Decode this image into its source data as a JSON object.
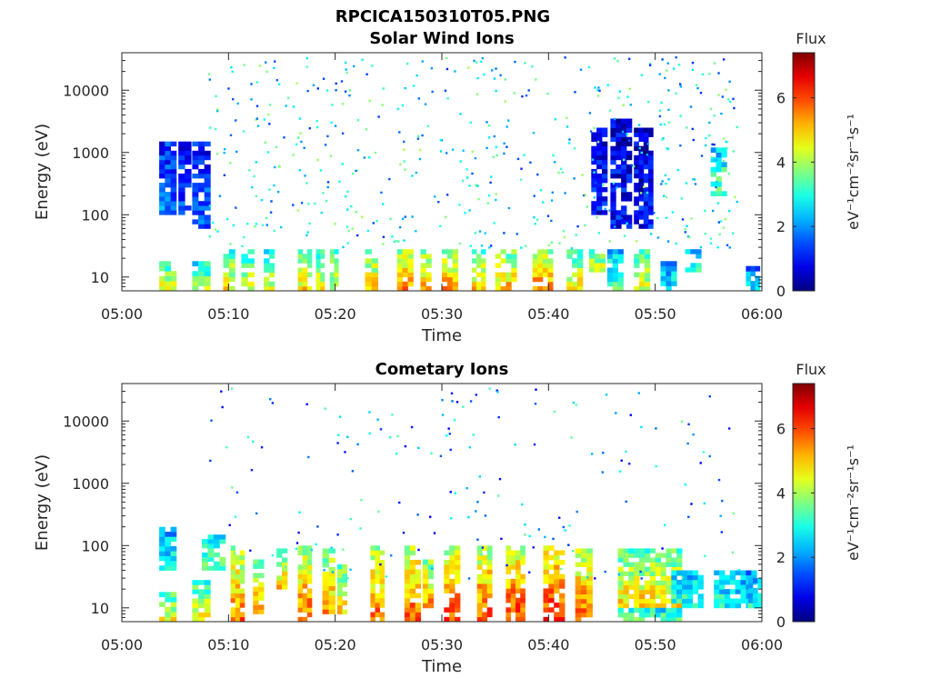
{
  "figure_title": "RPCICA150310T05.PNG",
  "chart_data": [
    {
      "type": "heatmap",
      "title": "Solar Wind Ions",
      "xlabel": "Time",
      "ylabel": "Energy (eV)",
      "x_ticks": [
        "05:00",
        "05:10",
        "05:20",
        "05:30",
        "05:40",
        "05:50",
        "06:00"
      ],
      "x_range_minutes": [
        0,
        60
      ],
      "y_scale": "log",
      "y_range": [
        6,
        40000
      ],
      "y_ticks": [
        "10",
        "100",
        "1000",
        "10000"
      ],
      "colorbar": {
        "label": "Flux",
        "unit": "eV⁻¹cm⁻²sr⁻¹s⁻¹",
        "range": [
          0,
          7.4
        ],
        "ticks": [
          "0",
          "2",
          "4",
          "6"
        ],
        "colormap": "jet"
      },
      "bursts": [
        {
          "t": 3.5,
          "w": 1.6,
          "emin": 6,
          "emax": 18,
          "value": 4.4
        },
        {
          "t": 3.5,
          "w": 1.6,
          "emin": 100,
          "emax": 1500,
          "value": 1.8
        },
        {
          "t": 5.3,
          "w": 1.2,
          "emin": 100,
          "emax": 1500,
          "value": 1.4
        },
        {
          "t": 6.6,
          "w": 1.7,
          "emin": 6,
          "emax": 18,
          "value": 4.0
        },
        {
          "t": 6.6,
          "w": 1.7,
          "emin": 60,
          "emax": 1500,
          "value": 1.6
        },
        {
          "t": 9.5,
          "w": 1.1,
          "emin": 6,
          "emax": 28,
          "value": 4.6
        },
        {
          "t": 11.2,
          "w": 1.2,
          "emin": 6,
          "emax": 28,
          "value": 4.4
        },
        {
          "t": 13.3,
          "w": 1.0,
          "emin": 6,
          "emax": 28,
          "value": 4.2
        },
        {
          "t": 16.5,
          "w": 1.3,
          "emin": 6,
          "emax": 28,
          "value": 4.8
        },
        {
          "t": 18.2,
          "w": 0.8,
          "emin": 6,
          "emax": 28,
          "value": 4.6
        },
        {
          "t": 19.5,
          "w": 0.8,
          "emin": 6,
          "emax": 28,
          "value": 4.4
        },
        {
          "t": 22.8,
          "w": 1.2,
          "emin": 6,
          "emax": 28,
          "value": 5.0
        },
        {
          "t": 25.8,
          "w": 1.5,
          "emin": 6,
          "emax": 28,
          "value": 5.6
        },
        {
          "t": 28.0,
          "w": 1.0,
          "emin": 6,
          "emax": 28,
          "value": 5.2
        },
        {
          "t": 30.0,
          "w": 1.5,
          "emin": 6,
          "emax": 28,
          "value": 5.4
        },
        {
          "t": 32.8,
          "w": 1.3,
          "emin": 6,
          "emax": 28,
          "value": 5.0
        },
        {
          "t": 35.0,
          "w": 2.0,
          "emin": 6,
          "emax": 28,
          "value": 5.2
        },
        {
          "t": 38.5,
          "w": 1.9,
          "emin": 6,
          "emax": 28,
          "value": 5.6
        },
        {
          "t": 41.7,
          "w": 1.5,
          "emin": 6,
          "emax": 28,
          "value": 4.8
        },
        {
          "t": 43.8,
          "w": 1.5,
          "emin": 12,
          "emax": 28,
          "value": 4.4
        },
        {
          "t": 44.0,
          "w": 1.5,
          "emin": 100,
          "emax": 2500,
          "value": 1.0
        },
        {
          "t": 45.5,
          "w": 1.5,
          "emin": 6,
          "emax": 28,
          "value": 3.4
        },
        {
          "t": 45.8,
          "w": 2.0,
          "emin": 60,
          "emax": 3500,
          "value": 1.0
        },
        {
          "t": 48.0,
          "w": 1.5,
          "emin": 6,
          "emax": 28,
          "value": 4.4
        },
        {
          "t": 48.0,
          "w": 1.8,
          "emin": 60,
          "emax": 2500,
          "value": 0.9
        },
        {
          "t": 50.5,
          "w": 1.5,
          "emin": 6,
          "emax": 18,
          "value": 2.8
        },
        {
          "t": 52.8,
          "w": 1.5,
          "emin": 12,
          "emax": 28,
          "value": 3.0
        },
        {
          "t": 55.2,
          "w": 1.5,
          "emin": 200,
          "emax": 1200,
          "value": 3.6
        },
        {
          "t": 58.5,
          "w": 1.3,
          "emin": 6,
          "emax": 15,
          "value": 2.4
        }
      ]
    },
    {
      "type": "heatmap",
      "title": "Cometary Ions",
      "xlabel": "Time",
      "ylabel": "Energy (eV)",
      "x_ticks": [
        "05:00",
        "05:10",
        "05:20",
        "05:30",
        "05:40",
        "05:50",
        "06:00"
      ],
      "x_range_minutes": [
        0,
        60
      ],
      "y_scale": "log",
      "y_range": [
        6,
        40000
      ],
      "y_ticks": [
        "10",
        "100",
        "1000",
        "10000"
      ],
      "colorbar": {
        "label": "Flux",
        "unit": "eV⁻¹cm⁻²sr⁻¹s⁻¹",
        "range": [
          0,
          7.4
        ],
        "ticks": [
          "0",
          "2",
          "4",
          "6"
        ],
        "colormap": "jet"
      },
      "bursts": [
        {
          "t": 3.5,
          "w": 1.6,
          "emin": 6,
          "emax": 18,
          "value": 4.6
        },
        {
          "t": 3.5,
          "w": 1.6,
          "emin": 40,
          "emax": 200,
          "value": 3.0
        },
        {
          "t": 6.6,
          "w": 1.7,
          "emin": 6,
          "emax": 28,
          "value": 4.6
        },
        {
          "t": 7.5,
          "w": 2.2,
          "emin": 40,
          "emax": 150,
          "value": 3.6
        },
        {
          "t": 10.2,
          "w": 1.3,
          "emin": 6,
          "emax": 100,
          "value": 5.6
        },
        {
          "t": 12.3,
          "w": 1.0,
          "emin": 8,
          "emax": 60,
          "value": 5.2
        },
        {
          "t": 14.5,
          "w": 1.0,
          "emin": 20,
          "emax": 90,
          "value": 5.0
        },
        {
          "t": 16.5,
          "w": 1.3,
          "emin": 6,
          "emax": 100,
          "value": 5.8
        },
        {
          "t": 18.8,
          "w": 1.2,
          "emin": 8,
          "emax": 90,
          "value": 5.4
        },
        {
          "t": 20.2,
          "w": 0.9,
          "emin": 8,
          "emax": 50,
          "value": 5.0
        },
        {
          "t": 23.3,
          "w": 1.3,
          "emin": 6,
          "emax": 100,
          "value": 5.8
        },
        {
          "t": 26.5,
          "w": 1.5,
          "emin": 6,
          "emax": 100,
          "value": 6.0
        },
        {
          "t": 28.2,
          "w": 1.0,
          "emin": 10,
          "emax": 60,
          "value": 5.4
        },
        {
          "t": 30.2,
          "w": 1.5,
          "emin": 6,
          "emax": 100,
          "value": 6.0
        },
        {
          "t": 33.3,
          "w": 1.4,
          "emin": 6,
          "emax": 100,
          "value": 6.0
        },
        {
          "t": 36.0,
          "w": 1.8,
          "emin": 6,
          "emax": 100,
          "value": 6.2
        },
        {
          "t": 39.5,
          "w": 2.0,
          "emin": 6,
          "emax": 100,
          "value": 6.4
        },
        {
          "t": 42.5,
          "w": 1.6,
          "emin": 6,
          "emax": 90,
          "value": 6.0
        },
        {
          "t": 46.5,
          "w": 6.0,
          "emin": 10,
          "emax": 90,
          "value": 5.0
        },
        {
          "t": 46.5,
          "w": 6.0,
          "emin": 6,
          "emax": 10,
          "value": 3.6
        },
        {
          "t": 51.5,
          "w": 3.0,
          "emin": 10,
          "emax": 40,
          "value": 3.2
        },
        {
          "t": 55.5,
          "w": 4.0,
          "emin": 10,
          "emax": 40,
          "value": 3.0
        },
        {
          "t": 58.7,
          "w": 1.8,
          "emin": 10,
          "emax": 30,
          "value": 2.8
        }
      ]
    }
  ]
}
